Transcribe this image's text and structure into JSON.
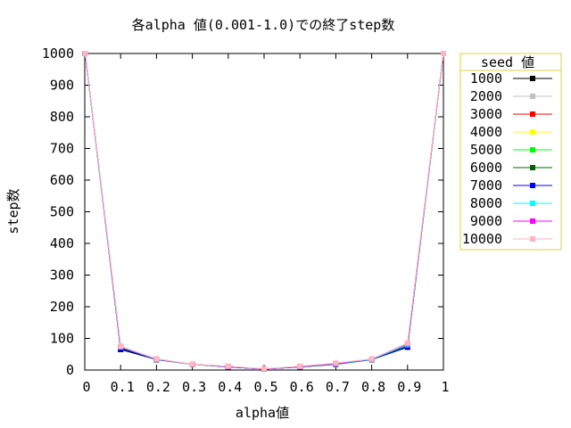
{
  "chart_data": {
    "type": "line",
    "title": "各alpha 値(0.001-1.0)での終了step数",
    "xlabel": "alpha値",
    "ylabel": "step数",
    "xlim": [
      0,
      1
    ],
    "ylim": [
      0,
      1000
    ],
    "x_ticks": [
      "0",
      "0.1",
      "0.2",
      "0.3",
      "0.4",
      "0.5",
      "0.6",
      "0.7",
      "0.8",
      "0.9",
      "1"
    ],
    "y_ticks": [
      "0",
      "100",
      "200",
      "300",
      "400",
      "500",
      "600",
      "700",
      "800",
      "900",
      "1000"
    ],
    "grid": false,
    "legend_title": "seed 値",
    "legend_position": "outside-top-right",
    "x": [
      0.001,
      0.1,
      0.2,
      0.3,
      0.4,
      0.5,
      0.6,
      0.7,
      0.8,
      0.9,
      1.0
    ],
    "series": [
      {
        "name": "1000",
        "color": "#000000",
        "values": [
          1000,
          65,
          33,
          18,
          10,
          3,
          10,
          18,
          33,
          72,
          1000
        ]
      },
      {
        "name": "2000",
        "color": "#c0c0c0",
        "values": [
          1000,
          70,
          33,
          18,
          10,
          3,
          10,
          18,
          33,
          75,
          1000
        ]
      },
      {
        "name": "3000",
        "color": "#ff0000",
        "values": [
          1000,
          72,
          34,
          18,
          11,
          3,
          11,
          19,
          34,
          78,
          1000
        ]
      },
      {
        "name": "4000",
        "color": "#ffff00",
        "values": [
          1000,
          72,
          34,
          18,
          11,
          3,
          11,
          19,
          34,
          80,
          1000
        ]
      },
      {
        "name": "5000",
        "color": "#00ff00",
        "values": [
          1000,
          71,
          33,
          18,
          10,
          3,
          10,
          18,
          33,
          78,
          1000
        ]
      },
      {
        "name": "6000",
        "color": "#006400",
        "values": [
          1000,
          70,
          33,
          18,
          10,
          3,
          10,
          18,
          33,
          76,
          1000
        ]
      },
      {
        "name": "7000",
        "color": "#0000ff",
        "values": [
          1000,
          68,
          33,
          18,
          10,
          3,
          10,
          19,
          33,
          74,
          1000
        ]
      },
      {
        "name": "8000",
        "color": "#00ffff",
        "values": [
          1000,
          73,
          34,
          18,
          11,
          3,
          11,
          19,
          34,
          80,
          1000
        ]
      },
      {
        "name": "9000",
        "color": "#ff00ff",
        "values": [
          1000,
          74,
          35,
          18,
          11,
          3,
          11,
          20,
          35,
          83,
          1000
        ]
      },
      {
        "name": "10000",
        "color": "#ffb6c1",
        "values": [
          1000,
          75,
          35,
          18,
          12,
          4,
          12,
          22,
          35,
          85,
          1000
        ]
      }
    ]
  }
}
